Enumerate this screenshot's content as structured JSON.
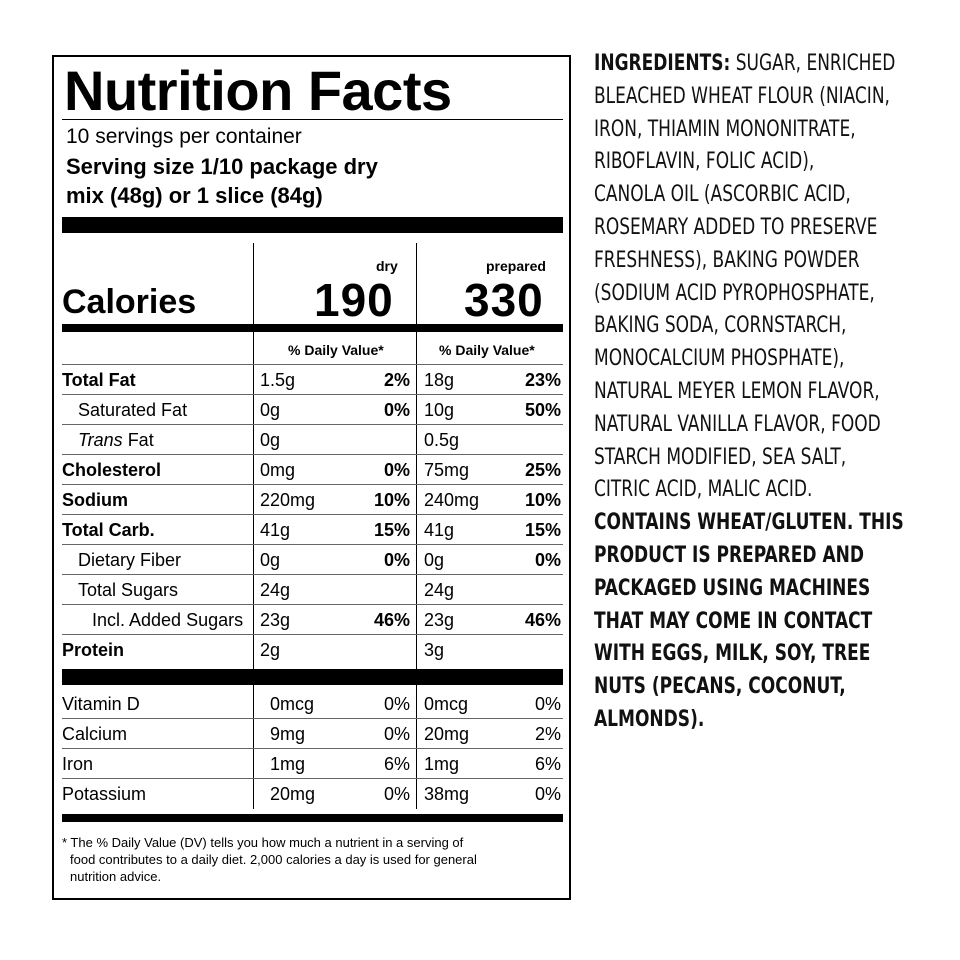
{
  "nutrition": {
    "title": "Nutrition Facts",
    "servings_per_container": "10 servings per container",
    "serving_size_line1": "Serving size 1/10 package dry",
    "serving_size_line2": "mix (48g) or 1 slice (84g)",
    "col_dry": "dry",
    "col_prepared": "prepared",
    "calories_label": "Calories",
    "calories_dry": "190",
    "calories_prepared": "330",
    "dv_header": "% Daily Value*",
    "rows": [
      {
        "label": "Total Fat",
        "dry_amount": "1.5g",
        "dry_dv": "2%",
        "prep_amount": "18g",
        "prep_dv": "23%"
      },
      {
        "label": "Saturated Fat",
        "dry_amount": "0g",
        "dry_dv": "0%",
        "prep_amount": "10g",
        "prep_dv": "50%"
      },
      {
        "label_italic": "Trans",
        "label_rest": " Fat",
        "dry_amount": "0g",
        "dry_dv": "",
        "prep_amount": "0.5g",
        "prep_dv": ""
      },
      {
        "label": "Cholesterol",
        "dry_amount": "0mg",
        "dry_dv": "0%",
        "prep_amount": "75mg",
        "prep_dv": "25%"
      },
      {
        "label": "Sodium",
        "dry_amount": "220mg",
        "dry_dv": "10%",
        "prep_amount": "240mg",
        "prep_dv": "10%"
      },
      {
        "label": "Total Carb.",
        "dry_amount": "41g",
        "dry_dv": "15%",
        "prep_amount": "41g",
        "prep_dv": "15%"
      },
      {
        "label": "Dietary Fiber",
        "dry_amount": "0g",
        "dry_dv": "0%",
        "prep_amount": "0g",
        "prep_dv": "0%"
      },
      {
        "label": "Total Sugars",
        "dry_amount": "24g",
        "dry_dv": "",
        "prep_amount": "24g",
        "prep_dv": ""
      },
      {
        "label": "Incl. Added Sugars",
        "dry_amount": "23g",
        "dry_dv": "46%",
        "prep_amount": "23g",
        "prep_dv": "46%"
      },
      {
        "label": "Protein",
        "dry_amount": "2g",
        "dry_dv": "",
        "prep_amount": "3g",
        "prep_dv": ""
      }
    ],
    "vitamins": [
      {
        "label": "Vitamin D",
        "dry_amount": "0mcg",
        "dry_dv": "0%",
        "prep_amount": "0mcg",
        "prep_dv": "0%"
      },
      {
        "label": "Calcium",
        "dry_amount": "9mg",
        "dry_dv": "0%",
        "prep_amount": "20mg",
        "prep_dv": "2%"
      },
      {
        "label": "Iron",
        "dry_amount": "1mg",
        "dry_dv": "6%",
        "prep_amount": "1mg",
        "prep_dv": "6%"
      },
      {
        "label": "Potassium",
        "dry_amount": "20mg",
        "dry_dv": "0%",
        "prep_amount": "38mg",
        "prep_dv": "0%"
      }
    ],
    "footnote_lines": [
      "* The % Daily Value (DV) tells you how much a nutrient in a serving of",
      "food contributes to a daily diet. 2,000 calories a day is used for general",
      "nutrition advice."
    ]
  },
  "ingredients": {
    "heading": "INGREDIENTS:",
    "line1_rest": " SUGAR, ENRICHED",
    "lines": [
      "BLEACHED WHEAT FLOUR (NIACIN,",
      "IRON, THIAMIN MONONITRATE,",
      "RIBOFLAVIN, FOLIC ACID),",
      "CANOLA OIL (ASCORBIC ACID,",
      "ROSEMARY ADDED TO PRESERVE",
      "FRESHNESS), BAKING POWDER",
      "(SODIUM ACID PYROPHOSPHATE,",
      "BAKING SODA, CORNSTARCH,",
      "MONOCALCIUM PHOSPHATE),",
      "NATURAL MEYER LEMON FLAVOR,",
      "NATURAL VANILLA FLAVOR, FOOD",
      "STARCH MODIFIED, SEA SALT,",
      "CITRIC ACID, MALIC ACID."
    ],
    "allergen_lines": [
      "CONTAINS WHEAT/GLUTEN. THIS",
      "PRODUCT IS PREPARED AND",
      "PACKAGED USING MACHINES",
      "THAT MAY COME IN CONTACT",
      "WITH EGGS, MILK, SOY, TREE",
      "NUTS (PECANS, COCONUT,",
      "ALMONDS)."
    ]
  }
}
